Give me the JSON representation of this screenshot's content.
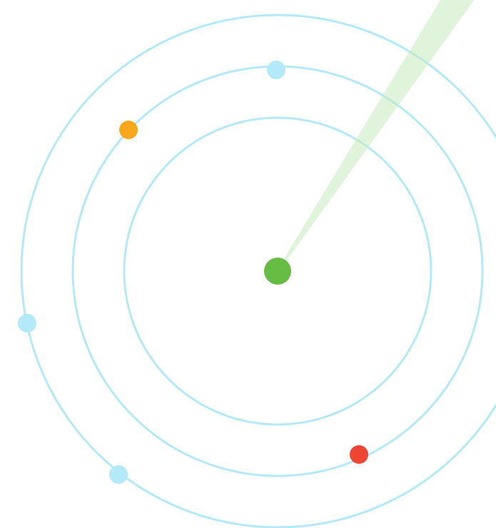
{
  "radar": {
    "colors": {
      "ring": "#b3e9f8",
      "sweep": "#c7e9bd",
      "center": "#67bc44",
      "neutral_blip": "#b3e9f8",
      "orange_blip": "#f9a81b",
      "red_blip": "#ee4535"
    },
    "rings": [
      {
        "name": "inner-ring"
      },
      {
        "name": "middle-ring"
      },
      {
        "name": "outer-ring"
      }
    ],
    "center_dot": {
      "name": "center-dot",
      "color_key": "center"
    },
    "sweep_beam": {
      "name": "sweep-beam",
      "color_key": "sweep",
      "opacity": 0.55
    },
    "blips": [
      {
        "name": "blip-neutral-top",
        "color_key": "neutral_blip"
      },
      {
        "name": "blip-orange",
        "color_key": "orange_blip"
      },
      {
        "name": "blip-neutral-left",
        "color_key": "neutral_blip"
      },
      {
        "name": "blip-neutral-bottom-left",
        "color_key": "neutral_blip"
      },
      {
        "name": "blip-red",
        "color_key": "red_blip"
      }
    ]
  }
}
